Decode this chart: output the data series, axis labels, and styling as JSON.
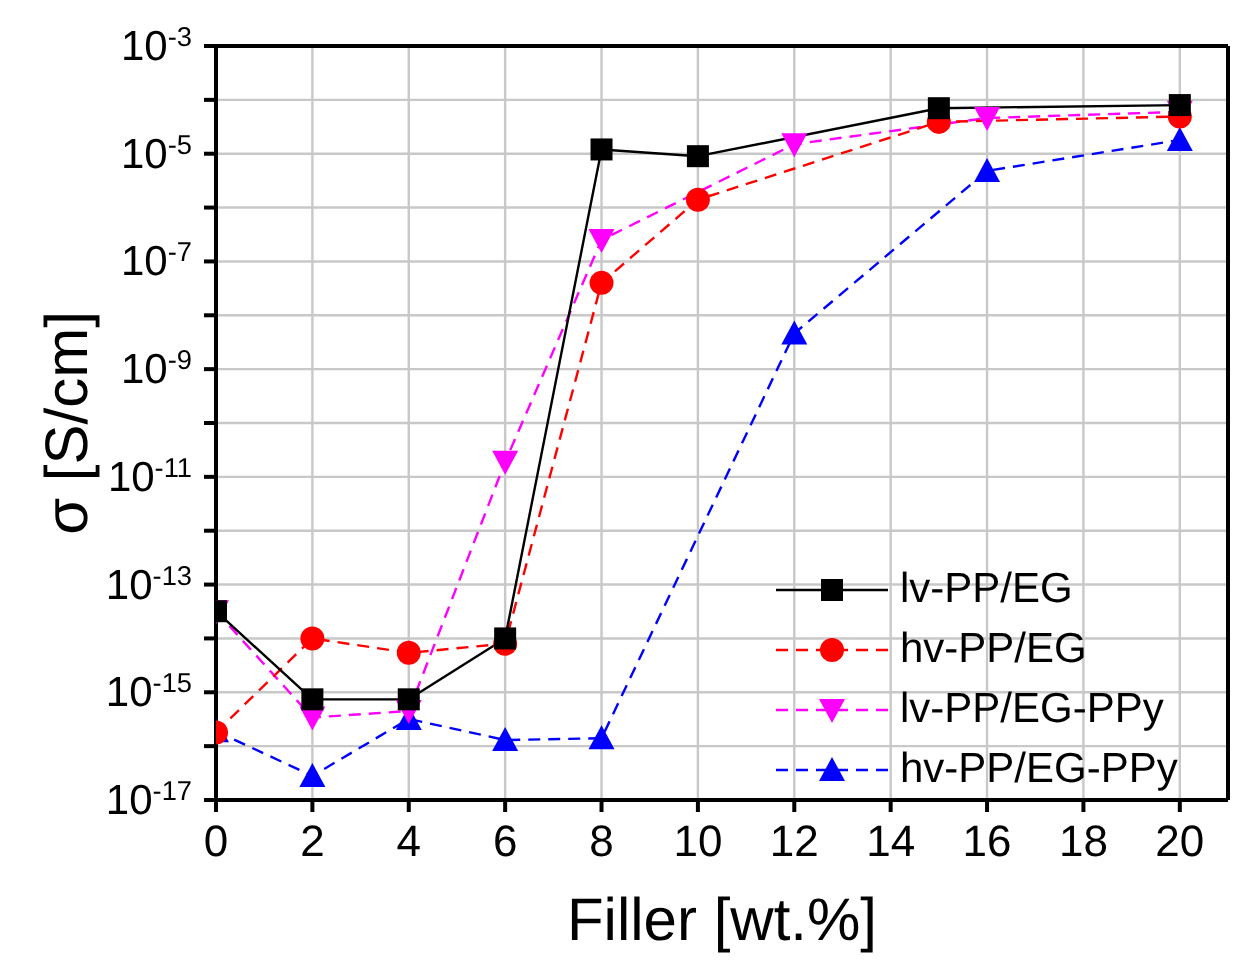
{
  "chart_data": {
    "type": "line",
    "xlabel": "Filler [wt.%]",
    "ylabel": "σ [S/cm]",
    "log": "y",
    "grid": true,
    "legend": "bottom right",
    "xlim": [
      0,
      21
    ],
    "xticks": [
      0,
      2,
      4,
      6,
      8,
      10,
      12,
      14,
      16,
      18,
      20
    ],
    "ylim": [
      1e-17,
      0.001
    ],
    "yticks": [
      {
        "value": 1e-17,
        "label": "10$^{-17}$"
      },
      {
        "value": 1e-16,
        "label": null
      },
      {
        "value": 1e-15,
        "label": "10$^{-15}$"
      },
      {
        "value": 1e-14,
        "label": null
      },
      {
        "value": 1e-13,
        "label": "10$^{-13}$"
      },
      {
        "value": 1e-12,
        "label": null
      },
      {
        "value": 1e-11,
        "label": "10$^{-11}$"
      },
      {
        "value": 1e-10,
        "label": null
      },
      {
        "value": 1e-09,
        "label": "10$^{-9}$"
      },
      {
        "value": 1e-08,
        "label": null
      },
      {
        "value": 1e-07,
        "label": "10$^{-7}$"
      },
      {
        "value": 1e-06,
        "label": null
      },
      {
        "value": 1e-05,
        "label": "10$^{-5}$"
      },
      {
        "value": 0.0001,
        "label": null
      },
      {
        "value": 0.001,
        "label": "10$^{-3}$"
      }
    ],
    "series": [
      {
        "name": "lv-PP/EG",
        "color": "#000000",
        "marker": "square",
        "line_style": "solid",
        "x": [
          0,
          2,
          4,
          6,
          8,
          10,
          15,
          20
        ],
        "values": [
          3.2e-14,
          7.4e-16,
          7.4e-16,
          1e-14,
          1.2e-05,
          9e-06,
          7e-05,
          8e-05
        ]
      },
      {
        "name": "hv-PP/EG",
        "color": "#ff0000",
        "marker": "circle",
        "line_style": "dashed",
        "x": [
          0,
          2,
          4,
          6,
          8,
          10,
          15,
          20
        ],
        "values": [
          1.8e-16,
          1e-14,
          5.4e-15,
          8e-15,
          4e-08,
          1.4e-06,
          3.9e-05,
          4.9e-05
        ]
      },
      {
        "name": "lv-PP/EG-PPy",
        "color": "#ff00ff",
        "marker": "triangle-down",
        "line_style": "dashed",
        "x": [
          0,
          2,
          4,
          6,
          8,
          12,
          16,
          20
        ],
        "values": [
          3.2e-14,
          3.4e-16,
          4.5e-16,
          1.9e-11,
          2.5e-07,
          1.5e-05,
          4.6e-05,
          6e-05
        ]
      },
      {
        "name": "hv-PP/EG-PPy",
        "color": "#0000ff",
        "marker": "triangle",
        "line_style": "dashed",
        "x": [
          0,
          2,
          4,
          6,
          8,
          12,
          16,
          20
        ],
        "values": [
          1.9e-16,
          2.8e-17,
          3.2e-16,
          1.3e-16,
          1.4e-16,
          4.6e-09,
          4.8e-06,
          1.8e-05
        ]
      }
    ]
  }
}
